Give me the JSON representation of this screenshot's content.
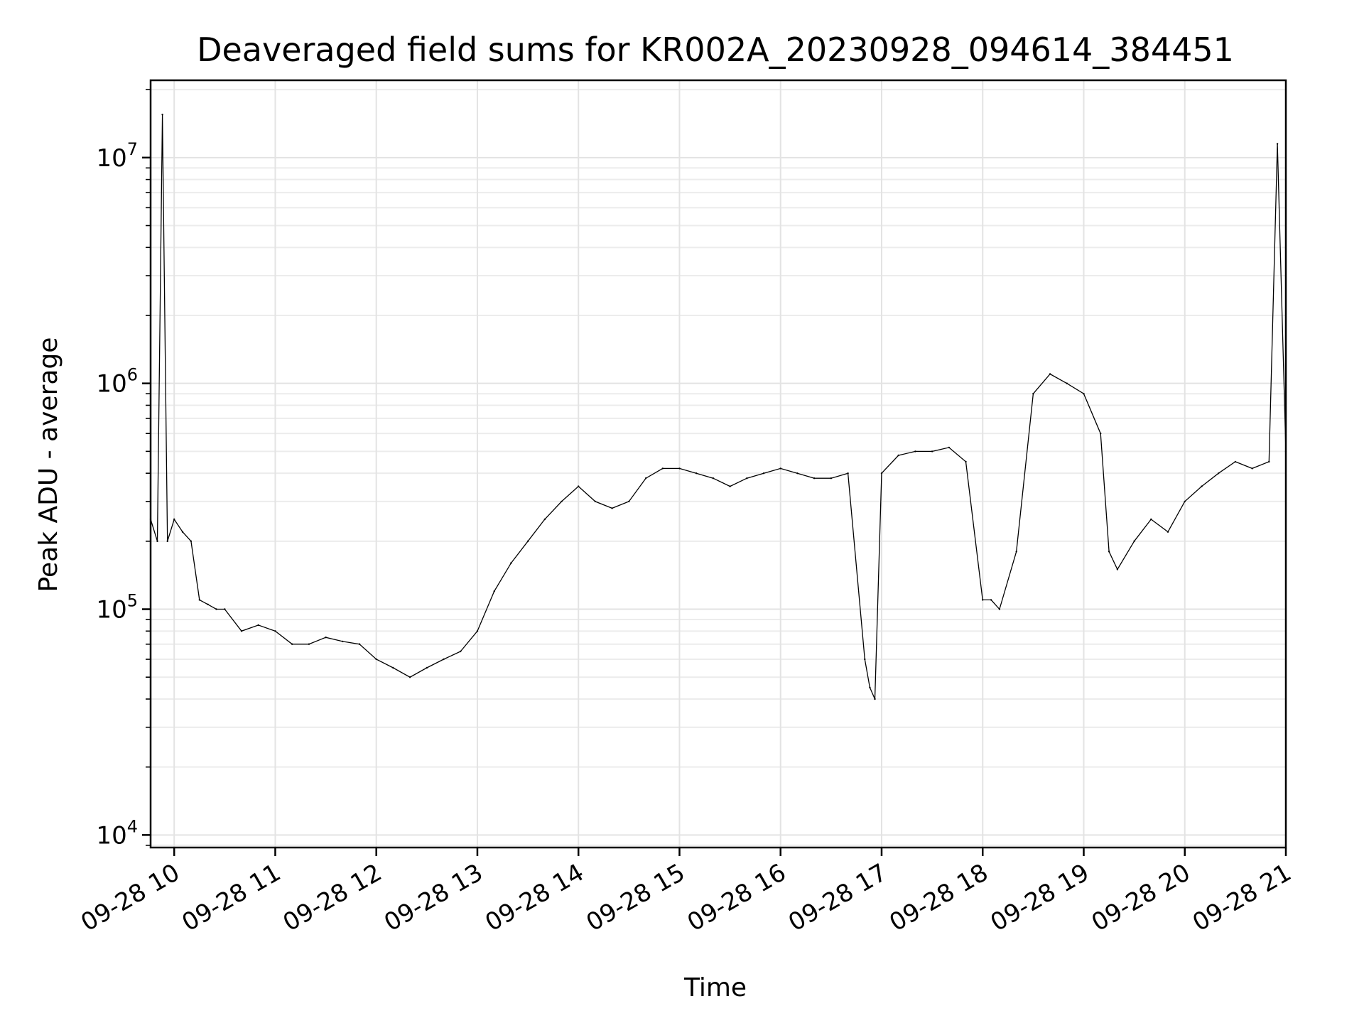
{
  "chart_data": {
    "type": "line",
    "title": "Deaveraged field sums for KR002A_20230928_094614_384451",
    "xlabel": "Time",
    "ylabel": "Peak ADU - average",
    "yscale": "log",
    "grid": true,
    "line_color": "#000000",
    "xlim": [
      "2023-09-28 09:46",
      "2023-09-28 21:00"
    ],
    "ylim": [
      8800,
      22000000
    ],
    "xticks": [
      {
        "t": "2023-09-28 10:00",
        "label": "09-28 10"
      },
      {
        "t": "2023-09-28 11:00",
        "label": "09-28 11"
      },
      {
        "t": "2023-09-28 12:00",
        "label": "09-28 12"
      },
      {
        "t": "2023-09-28 13:00",
        "label": "09-28 13"
      },
      {
        "t": "2023-09-28 14:00",
        "label": "09-28 14"
      },
      {
        "t": "2023-09-28 15:00",
        "label": "09-28 15"
      },
      {
        "t": "2023-09-28 16:00",
        "label": "09-28 16"
      },
      {
        "t": "2023-09-28 17:00",
        "label": "09-28 17"
      },
      {
        "t": "2023-09-28 18:00",
        "label": "09-28 18"
      },
      {
        "t": "2023-09-28 19:00",
        "label": "09-28 19"
      },
      {
        "t": "2023-09-28 20:00",
        "label": "09-28 20"
      },
      {
        "t": "2023-09-28 21:00",
        "label": "09-28 21"
      }
    ],
    "yticks": [
      {
        "value": 10000,
        "base": "10",
        "exp": "4"
      },
      {
        "value": 100000,
        "base": "10",
        "exp": "5"
      },
      {
        "value": 1000000,
        "base": "10",
        "exp": "6"
      },
      {
        "value": 10000000,
        "base": "10",
        "exp": "7"
      }
    ],
    "series": [
      {
        "x": [
          "2023-09-28 09:46",
          "2023-09-28 09:50",
          "2023-09-28 09:53",
          "2023-09-28 09:56",
          "2023-09-28 10:00",
          "2023-09-28 10:05",
          "2023-09-28 10:10",
          "2023-09-28 10:15",
          "2023-09-28 10:20",
          "2023-09-28 10:25",
          "2023-09-28 10:30",
          "2023-09-28 10:40",
          "2023-09-28 10:50",
          "2023-09-28 11:00",
          "2023-09-28 11:10",
          "2023-09-28 11:20",
          "2023-09-28 11:30",
          "2023-09-28 11:40",
          "2023-09-28 11:50",
          "2023-09-28 12:00",
          "2023-09-28 12:10",
          "2023-09-28 12:20",
          "2023-09-28 12:30",
          "2023-09-28 12:40",
          "2023-09-28 12:50",
          "2023-09-28 13:00",
          "2023-09-28 13:10",
          "2023-09-28 13:20",
          "2023-09-28 13:30",
          "2023-09-28 13:40",
          "2023-09-28 13:50",
          "2023-09-28 14:00",
          "2023-09-28 14:10",
          "2023-09-28 14:20",
          "2023-09-28 14:30",
          "2023-09-28 14:40",
          "2023-09-28 14:50",
          "2023-09-28 15:00",
          "2023-09-28 15:10",
          "2023-09-28 15:20",
          "2023-09-28 15:30",
          "2023-09-28 15:40",
          "2023-09-28 15:50",
          "2023-09-28 16:00",
          "2023-09-28 16:10",
          "2023-09-28 16:20",
          "2023-09-28 16:30",
          "2023-09-28 16:40",
          "2023-09-28 16:50",
          "2023-09-28 16:53",
          "2023-09-28 16:56",
          "2023-09-28 17:00",
          "2023-09-28 17:10",
          "2023-09-28 17:20",
          "2023-09-28 17:30",
          "2023-09-28 17:40",
          "2023-09-28 17:50",
          "2023-09-28 18:00",
          "2023-09-28 18:05",
          "2023-09-28 18:10",
          "2023-09-28 18:20",
          "2023-09-28 18:30",
          "2023-09-28 18:40",
          "2023-09-28 18:50",
          "2023-09-28 19:00",
          "2023-09-28 19:10",
          "2023-09-28 19:15",
          "2023-09-28 19:20",
          "2023-09-28 19:30",
          "2023-09-28 19:40",
          "2023-09-28 19:50",
          "2023-09-28 20:00",
          "2023-09-28 20:10",
          "2023-09-28 20:20",
          "2023-09-28 20:30",
          "2023-09-28 20:40",
          "2023-09-28 20:50",
          "2023-09-28 20:55",
          "2023-09-28 21:00"
        ],
        "y": [
          250000,
          200000,
          15500000,
          200000,
          250000,
          220000,
          200000,
          110000,
          105000,
          100000,
          100000,
          80000,
          85000,
          80000,
          70000,
          70000,
          75000,
          72000,
          70000,
          60000,
          55000,
          50000,
          55000,
          60000,
          65000,
          80000,
          120000,
          160000,
          200000,
          250000,
          300000,
          350000,
          300000,
          280000,
          300000,
          380000,
          420000,
          420000,
          400000,
          380000,
          350000,
          380000,
          400000,
          420000,
          400000,
          380000,
          380000,
          400000,
          60000,
          45000,
          40000,
          400000,
          480000,
          500000,
          500000,
          520000,
          450000,
          110000,
          110000,
          100000,
          180000,
          900000,
          1100000,
          1000000,
          900000,
          600000,
          180000,
          150000,
          200000,
          250000,
          220000,
          300000,
          350000,
          400000,
          450000,
          420000,
          450000,
          11500000,
          500000
        ]
      }
    ]
  }
}
